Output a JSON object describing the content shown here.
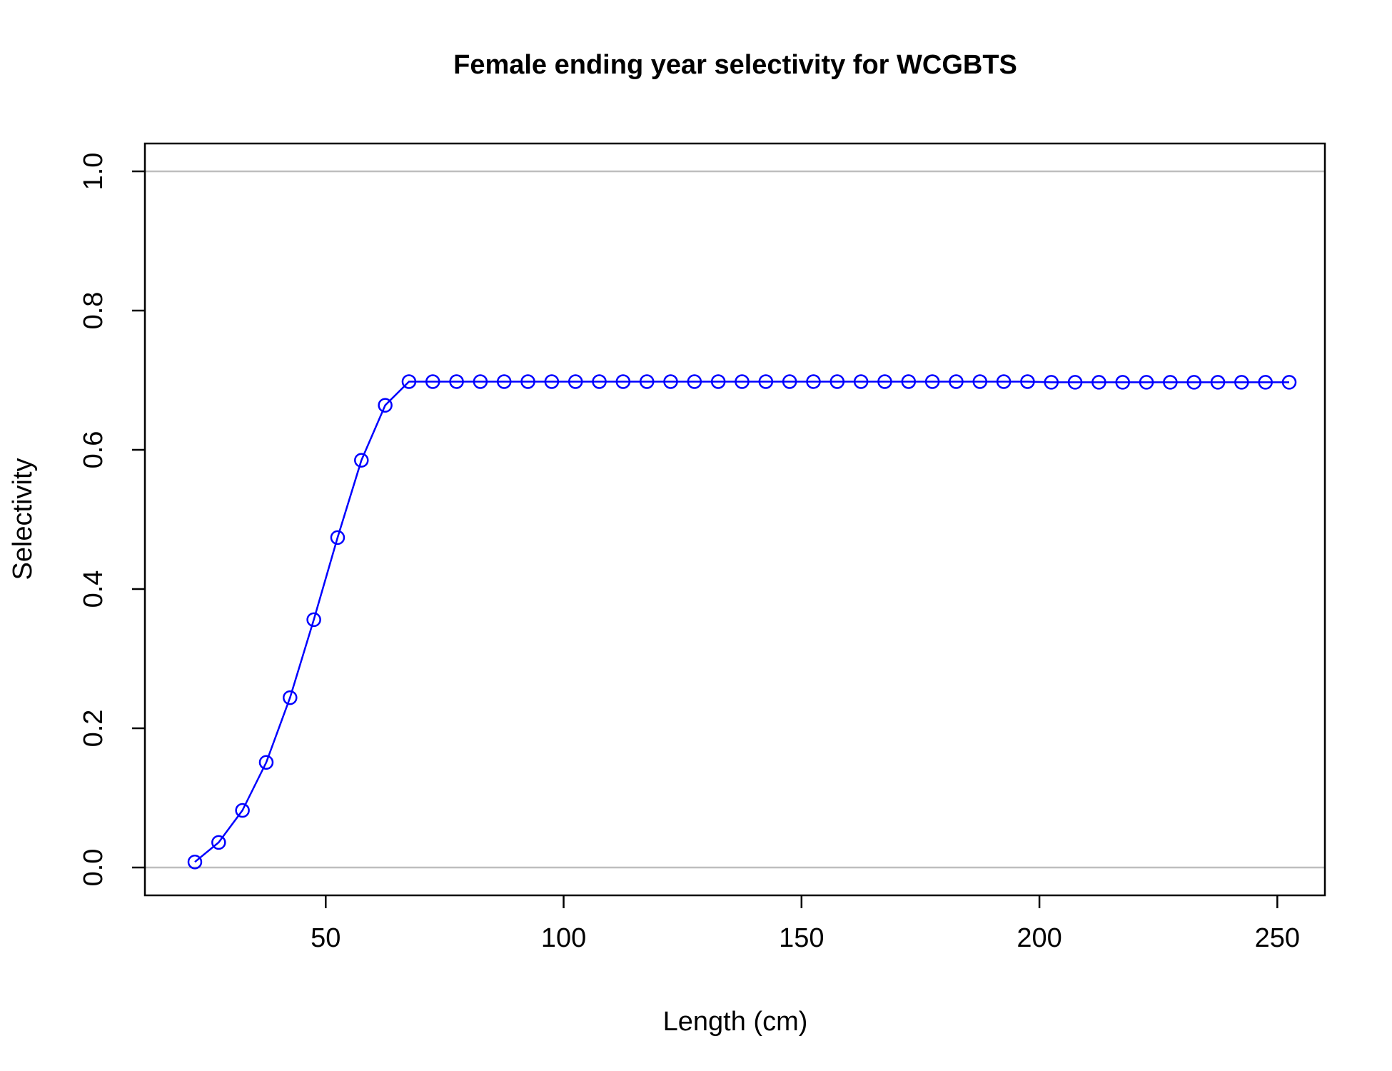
{
  "chart_data": {
    "type": "line",
    "title": "Female ending year selectivity for WCGBTS",
    "xlabel": "Length (cm)",
    "ylabel": "Selectivity",
    "xlim": [
      12,
      260
    ],
    "ylim": [
      -0.04,
      1.04
    ],
    "xticks": [
      50,
      100,
      150,
      200,
      250
    ],
    "yticks": [
      0.0,
      0.2,
      0.4,
      0.6,
      0.8,
      1.0
    ],
    "ytick_labels": [
      "0.0",
      "0.2",
      "0.4",
      "0.6",
      "0.8",
      "1.0"
    ],
    "reference_lines_y": [
      0,
      1
    ],
    "colors": {
      "series": "#0000ff",
      "reference": "#bebebe",
      "axis": "#000000"
    },
    "series": [
      {
        "marker": "open-circle",
        "x": [
          22.5,
          27.5,
          32.5,
          37.5,
          42.5,
          47.5,
          52.5,
          57.5,
          62.5,
          67.5,
          72.5,
          77.5,
          82.5,
          87.5,
          92.5,
          97.5,
          102.5,
          107.5,
          112.5,
          117.5,
          122.5,
          127.5,
          132.5,
          137.5,
          142.5,
          147.5,
          152.5,
          157.5,
          162.5,
          167.5,
          172.5,
          177.5,
          182.5,
          187.5,
          192.5,
          197.5,
          202.5,
          207.5,
          212.5,
          217.5,
          222.5,
          227.5,
          232.5,
          237.5,
          242.5,
          247.5,
          252.5
        ],
        "y": [
          0.008,
          0.036,
          0.082,
          0.151,
          0.244,
          0.356,
          0.474,
          0.585,
          0.664,
          0.698,
          0.698,
          0.698,
          0.698,
          0.698,
          0.698,
          0.698,
          0.698,
          0.698,
          0.698,
          0.698,
          0.698,
          0.698,
          0.698,
          0.698,
          0.698,
          0.698,
          0.698,
          0.698,
          0.698,
          0.698,
          0.698,
          0.698,
          0.698,
          0.698,
          0.698,
          0.698,
          0.697,
          0.697,
          0.697,
          0.697,
          0.697,
          0.697,
          0.697,
          0.697,
          0.697,
          0.697,
          0.697
        ]
      }
    ]
  }
}
